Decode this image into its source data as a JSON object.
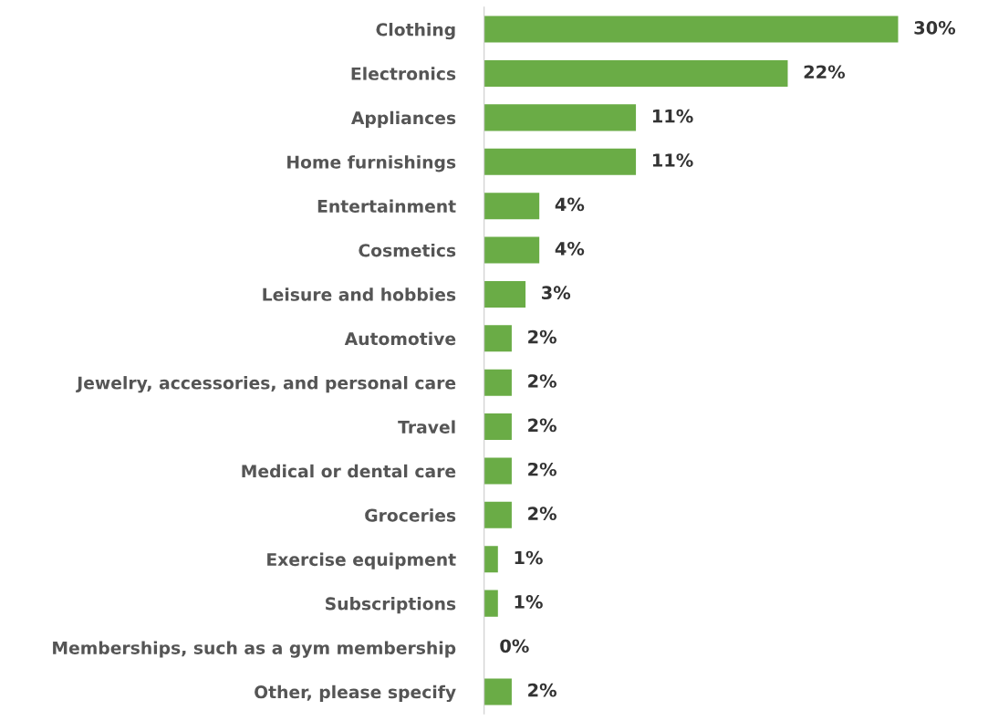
{
  "chart_data": {
    "type": "bar",
    "orientation": "horizontal",
    "tick_labels": "y",
    "grid": false,
    "categories": [
      "Clothing",
      "Electronics",
      "Appliances",
      "Home furnishings",
      "Entertainment",
      "Cosmetics",
      "Leisure and hobbies",
      "Automotive",
      "Jewelry, accessories, and personal care",
      "Travel",
      "Medical or dental care",
      "Groceries",
      "Exercise equipment",
      "Subscriptions",
      "Memberships, such as a gym membership",
      "Other, please specify"
    ],
    "values": [
      30,
      22,
      11,
      11,
      4,
      4,
      3,
      2,
      2,
      2,
      2,
      2,
      1,
      1,
      0,
      2
    ],
    "value_labels": [
      "30%",
      "22%",
      "11%",
      "11%",
      "4%",
      "4%",
      "3%",
      "2%",
      "2%",
      "2%",
      "2%",
      "2%",
      "1%",
      "1%",
      "0%",
      "2%"
    ],
    "color": "#6aac46"
  }
}
